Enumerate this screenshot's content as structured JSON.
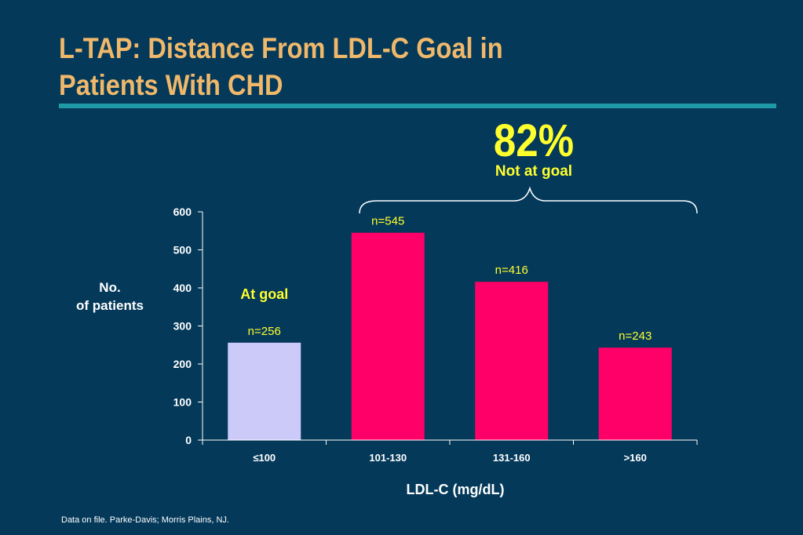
{
  "slide": {
    "title_line1": "L-TAP: Distance From LDL-C Goal in",
    "title_line2": "Patients With CHD",
    "highlight_percent": "82%",
    "highlight_caption": "Not at goal",
    "ylabel_line1": "No.",
    "ylabel_line2": "of patients",
    "xlabel": "LDL-C (mg/dL)",
    "footnote": "Data on file.  Parke-Davis; Morris Plains, NJ.",
    "at_goal_annotation": "At goal"
  },
  "colors": {
    "background": "#04395a",
    "title": "#f0b86a",
    "rule": "#1f9aa6",
    "highlight": "#ffff2e",
    "at_goal_bar": "#cccaf8",
    "not_goal_bar": "#ff0068"
  },
  "chart_data": {
    "type": "bar",
    "categories": [
      "≤100",
      "101-130",
      "131-160",
      ">160"
    ],
    "values": [
      256,
      545,
      416,
      243
    ],
    "data_labels": [
      "n=256",
      "n=545",
      "n=416",
      "n=243"
    ],
    "bar_groups": [
      "at goal",
      "not at goal",
      "not at goal",
      "not at goal"
    ],
    "ylim": [
      0,
      600
    ],
    "yticks": [
      0,
      100,
      200,
      300,
      400,
      500,
      600
    ],
    "xlabel": "LDL-C (mg/dL)",
    "ylabel": "No. of patients",
    "grid": false,
    "legend": "none"
  }
}
